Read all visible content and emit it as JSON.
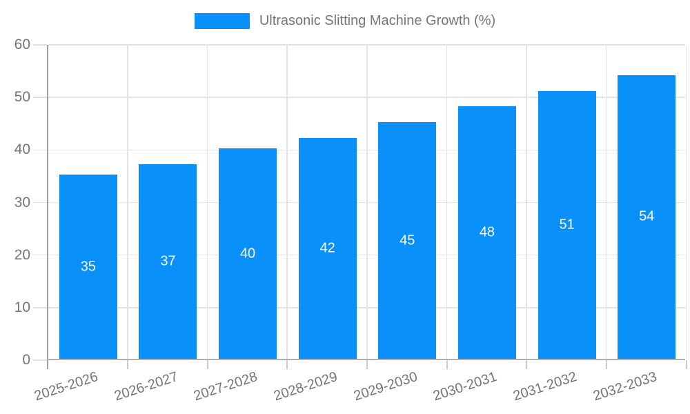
{
  "legend": {
    "label": "Ultrasonic Slitting Machine Growth (%)"
  },
  "chart_data": {
    "type": "bar",
    "title": "Ultrasonic Slitting Machine Growth (%)",
    "series_name": "Ultrasonic Slitting Machine Growth (%)",
    "categories": [
      "2025-2026",
      "2026-2027",
      "2027-2028",
      "2028-2029",
      "2029-2030",
      "2030-2031",
      "2031-2032",
      "2032-2033"
    ],
    "values": [
      35,
      37,
      40,
      42,
      45,
      48,
      51,
      54
    ],
    "data_labels": [
      "35",
      "37",
      "40",
      "42",
      "45",
      "48",
      "51",
      "54"
    ],
    "xlabel": "",
    "ylabel": "",
    "ylim": [
      0,
      60
    ],
    "yticks": [
      0,
      10,
      20,
      30,
      40,
      50,
      60
    ],
    "grid": true,
    "legend_position": "top",
    "bar_color": "#0991f9",
    "value_label_color": "#ffffff",
    "axis_text_color": "#757575"
  }
}
